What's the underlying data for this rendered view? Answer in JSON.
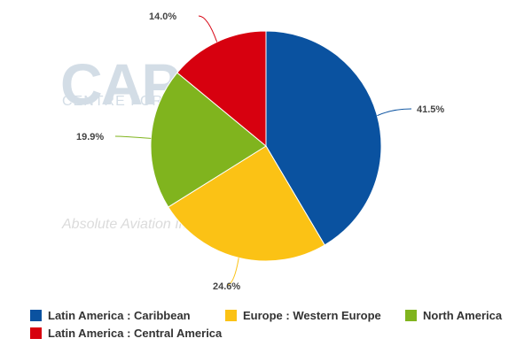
{
  "watermark": {
    "brand_logo": "CAPA",
    "brand_name": "CENTRE FOR AVIATION",
    "tagline": "Absolute Aviation Intelligence"
  },
  "chart_data": {
    "type": "pie",
    "title": "",
    "slices": [
      {
        "name": "Latin America : Caribbean",
        "value": 41.5,
        "label": "41.5%",
        "color": "#0a52a0"
      },
      {
        "name": "Europe : Western Europe",
        "value": 24.6,
        "label": "24.6%",
        "color": "#fbc215"
      },
      {
        "name": "North America",
        "value": 19.9,
        "label": "19.9%",
        "color": "#80b41e"
      },
      {
        "name": "Latin America : Central America",
        "value": 14.0,
        "label": "14.0%",
        "color": "#d7000f"
      }
    ],
    "legend_position": "bottom"
  }
}
